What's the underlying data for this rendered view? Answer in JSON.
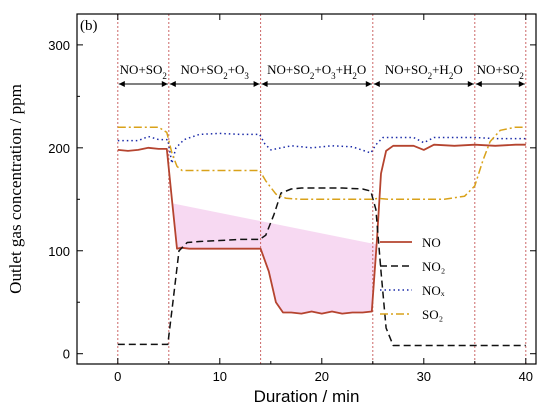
{
  "chart_data": {
    "type": "line",
    "panel_label": "(b)",
    "xlabel": "Duration / min",
    "ylabel": "Outlet gas concentration / ppm",
    "xlim": [
      -4,
      41
    ],
    "ylim": [
      -10,
      330
    ],
    "xticks": [
      0,
      10,
      20,
      30,
      40
    ],
    "yticks": [
      0,
      100,
      200,
      300
    ],
    "grid": false,
    "legend_position": "right-middle",
    "phase_boundaries": [
      0,
      5,
      14,
      25,
      35,
      40
    ],
    "phases": [
      {
        "start": 0,
        "end": 5,
        "label": "NO+SO2"
      },
      {
        "start": 5,
        "end": 14,
        "label": "NO+SO2+O3"
      },
      {
        "start": 14,
        "end": 25,
        "label": "NO+SO2+O3+H2O"
      },
      {
        "start": 25,
        "end": 35,
        "label": "NO+SO2+H2O"
      },
      {
        "start": 35,
        "end": 40,
        "label": "NO+SO2"
      }
    ],
    "colors": {
      "NO": "#b5442f",
      "NO2": "#111111",
      "NOx": "#1a2aa8",
      "SO2": "#d9a21a",
      "boundary": "#cc6666",
      "fill": "#f6d2f0"
    },
    "series": [
      {
        "name": "NO",
        "legend": "NO",
        "style": "solid",
        "x": [
          0,
          1,
          2,
          3,
          4,
          4.8,
          5.3,
          5.8,
          6.2,
          7,
          9,
          11,
          13,
          14,
          14.8,
          15.5,
          16.2,
          17,
          18,
          19,
          20,
          21,
          22,
          23,
          24,
          24.9,
          25.4,
          25.8,
          26.3,
          27,
          29,
          30,
          31,
          33,
          35,
          37,
          39,
          40
        ],
        "y": [
          198,
          197,
          198,
          200,
          199,
          199,
          150,
          102,
          103,
          102,
          102,
          102,
          102,
          102,
          80,
          50,
          40,
          40,
          39,
          41,
          39,
          41,
          39,
          40,
          40,
          41,
          110,
          175,
          197,
          202,
          202,
          198,
          203,
          202,
          203,
          202,
          203,
          203
        ]
      },
      {
        "name": "NO2",
        "legend": "NO₂",
        "style": "dashed",
        "x": [
          0,
          4.9,
          5.4,
          6,
          6.8,
          8,
          10,
          12,
          13.9,
          14.5,
          15.3,
          16,
          17,
          18,
          20,
          22,
          24,
          24.8,
          25.3,
          25.8,
          26.3,
          27,
          29,
          31,
          33,
          35,
          37,
          40
        ],
        "y": [
          9,
          9,
          50,
          100,
          108,
          109,
          110,
          111,
          111,
          115,
          135,
          156,
          160,
          161,
          161,
          161,
          160,
          158,
          140,
          80,
          25,
          8,
          8,
          8,
          8,
          8,
          8,
          8
        ]
      },
      {
        "name": "NOx",
        "legend": "NOₓ",
        "style": "dotted",
        "x": [
          0,
          2,
          3,
          4,
          4.9,
          5.3,
          5.7,
          6.5,
          8,
          10,
          12,
          13.9,
          14.4,
          15,
          17,
          19,
          21,
          23,
          24.8,
          25.3,
          26,
          27,
          29,
          30,
          31,
          33,
          35,
          37,
          40
        ],
        "y": [
          207,
          207,
          211,
          208,
          208,
          185,
          200,
          208,
          213,
          214,
          213,
          213,
          204,
          198,
          202,
          200,
          202,
          201,
          195,
          203,
          210,
          210,
          210,
          205,
          210,
          210,
          210,
          209,
          209
        ],
        "note": "line"
      },
      {
        "name": "SO2",
        "legend": "SO₂",
        "style": "dashdot",
        "x": [
          0,
          2,
          4,
          4.8,
          5.3,
          5.8,
          6.3,
          8,
          10,
          12,
          13.9,
          14.5,
          15.5,
          16.5,
          18,
          20,
          22,
          24,
          25,
          25.5,
          26.5,
          28,
          30,
          32,
          34,
          35,
          35.8,
          36.5,
          37.5,
          39,
          40
        ],
        "y": [
          220,
          220,
          220,
          215,
          195,
          182,
          178,
          178,
          178,
          178,
          178,
          168,
          155,
          151,
          150,
          150,
          150,
          150,
          150,
          151,
          150,
          150,
          150,
          150,
          153,
          163,
          188,
          206,
          217,
          220,
          220
        ]
      }
    ]
  }
}
